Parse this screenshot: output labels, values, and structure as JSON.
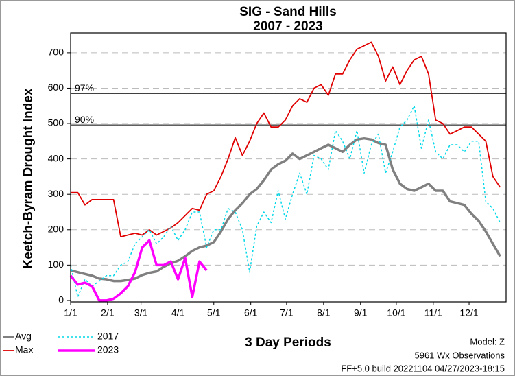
{
  "chart_data": {
    "type": "line",
    "title": "SIG - Sand Hills",
    "subtitle": "2007 - 2023",
    "y_label": "Keetch-Byram Drought Index",
    "x_label": "3 Day Periods",
    "notes": [
      "Model: Z",
      "5961 Wx Observations",
      "FF+5.0 build 20221104 04/27/2023-18:15"
    ],
    "xlim": [
      0,
      121.67
    ],
    "ylim": [
      -4,
      756
    ],
    "xticks": [
      {
        "value": 0,
        "label": "1/1"
      },
      {
        "value": 10.33,
        "label": "2/1"
      },
      {
        "value": 19.67,
        "label": "3/1"
      },
      {
        "value": 30,
        "label": "4/1"
      },
      {
        "value": 40,
        "label": "5/1"
      },
      {
        "value": 50.33,
        "label": "6/1"
      },
      {
        "value": 60.33,
        "label": "7/1"
      },
      {
        "value": 70.67,
        "label": "8/1"
      },
      {
        "value": 81,
        "label": "9/1"
      },
      {
        "value": 91,
        "label": "10/1"
      },
      {
        "value": 101.33,
        "label": "11/1"
      },
      {
        "value": 111.33,
        "label": "12/1"
      }
    ],
    "yticks": [
      0,
      100,
      200,
      300,
      400,
      500,
      600,
      700
    ],
    "grid": true,
    "reference_lines": [
      {
        "value": 585,
        "label": "97%"
      },
      {
        "value": 496,
        "label": "90%"
      }
    ],
    "x": [
      0,
      2,
      4,
      6,
      8,
      10,
      12,
      14,
      16,
      18,
      20,
      22,
      24,
      26,
      28,
      30,
      32,
      34,
      36,
      38,
      40,
      42,
      44,
      46,
      48,
      50,
      52,
      54,
      56,
      58,
      60,
      62,
      64,
      66,
      68,
      70,
      72,
      74,
      76,
      78,
      80,
      82,
      84,
      86,
      88,
      90,
      92,
      94,
      96,
      98,
      100,
      102,
      104,
      106,
      108,
      110,
      112,
      114,
      116,
      118,
      120
    ],
    "series": [
      {
        "name": "Avg",
        "color": "#808080",
        "linewidth": 3.5,
        "linestyle": "solid",
        "values": [
          85,
          80,
          75,
          70,
          62,
          60,
          55,
          55,
          58,
          62,
          72,
          78,
          82,
          95,
          105,
          112,
          125,
          140,
          150,
          155,
          165,
          195,
          230,
          255,
          275,
          300,
          315,
          340,
          370,
          385,
          395,
          415,
          400,
          410,
          420,
          430,
          440,
          430,
          420,
          440,
          455,
          458,
          455,
          445,
          440,
          370,
          330,
          315,
          310,
          320,
          330,
          310,
          310,
          280,
          275,
          270,
          245,
          225,
          195,
          160,
          125
        ]
      },
      {
        "name": "Max",
        "color": "#e00000",
        "linewidth": 1.8,
        "linestyle": "solid",
        "values": [
          305,
          305,
          270,
          285,
          285,
          285,
          285,
          180,
          185,
          190,
          185,
          200,
          185,
          195,
          205,
          220,
          240,
          260,
          255,
          300,
          310,
          350,
          400,
          460,
          410,
          450,
          500,
          530,
          490,
          490,
          510,
          550,
          570,
          560,
          600,
          610,
          580,
          640,
          640,
          680,
          710,
          720,
          730,
          690,
          620,
          660,
          610,
          650,
          680,
          690,
          640,
          510,
          500,
          470,
          480,
          490,
          490,
          470,
          450,
          350,
          320
        ]
      },
      {
        "name": "2017",
        "color": "#00d8e8",
        "linewidth": 1.5,
        "linestyle": "dotted",
        "values": [
          100,
          10,
          60,
          40,
          55,
          70,
          70,
          100,
          110,
          160,
          180,
          200,
          160,
          180,
          210,
          170,
          200,
          250,
          250,
          150,
          200,
          200,
          260,
          250,
          200,
          80,
          210,
          250,
          220,
          310,
          230,
          300,
          360,
          300,
          410,
          400,
          370,
          480,
          450,
          400,
          480,
          360,
          440,
          470,
          360,
          420,
          490,
          510,
          550,
          430,
          510,
          420,
          400,
          440,
          440,
          420,
          450,
          450,
          280,
          260,
          220
        ]
      },
      {
        "name": "2023",
        "color": "#ff00ff",
        "linewidth": 3.5,
        "linestyle": "solid",
        "values": [
          70,
          45,
          50,
          40,
          0,
          0,
          5,
          20,
          40,
          80,
          150,
          170,
          100,
          100,
          110,
          60,
          120,
          10,
          110,
          85,
          null,
          null,
          null,
          null,
          null,
          null,
          null,
          null,
          null,
          null,
          null,
          null,
          null,
          null,
          null,
          null,
          null,
          null,
          null,
          null,
          null,
          null,
          null,
          null,
          null,
          null,
          null,
          null,
          null,
          null,
          null,
          null,
          null,
          null,
          null,
          null,
          null,
          null,
          null,
          null,
          null
        ]
      }
    ]
  }
}
